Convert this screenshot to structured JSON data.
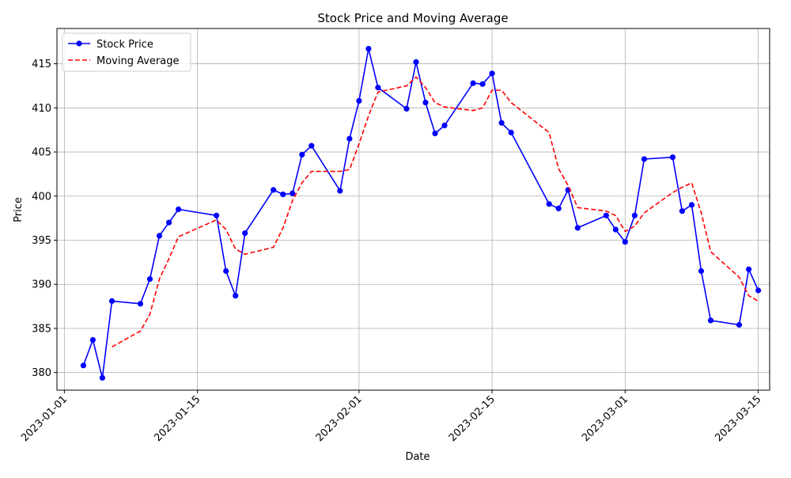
{
  "chart_data": {
    "type": "line",
    "title": "Stock Price and Moving Average",
    "xlabel": "Date",
    "ylabel": "Price",
    "grid": true,
    "legend_position": "top-left",
    "xlim": [
      "2023-01-01",
      "2023-03-15"
    ],
    "ylim": [
      378,
      419
    ],
    "x_ticks": [
      "2023-01-01",
      "2023-01-15",
      "2023-02-01",
      "2023-02-15",
      "2023-03-01",
      "2023-03-15"
    ],
    "y_ticks": [
      380,
      385,
      390,
      395,
      400,
      405,
      410,
      415
    ],
    "x": [
      "2023-01-03",
      "2023-01-04",
      "2023-01-05",
      "2023-01-06",
      "2023-01-09",
      "2023-01-10",
      "2023-01-11",
      "2023-01-12",
      "2023-01-13",
      "2023-01-17",
      "2023-01-18",
      "2023-01-19",
      "2023-01-20",
      "2023-01-23",
      "2023-01-24",
      "2023-01-25",
      "2023-01-26",
      "2023-01-27",
      "2023-01-30",
      "2023-01-31",
      "2023-02-01",
      "2023-02-02",
      "2023-02-03",
      "2023-02-06",
      "2023-02-07",
      "2023-02-08",
      "2023-02-09",
      "2023-02-10",
      "2023-02-13",
      "2023-02-14",
      "2023-02-15",
      "2023-02-16",
      "2023-02-17",
      "2023-02-21",
      "2023-02-22",
      "2023-02-23",
      "2023-02-24",
      "2023-02-27",
      "2023-02-28",
      "2023-03-01",
      "2023-03-02",
      "2023-03-03",
      "2023-03-06",
      "2023-03-07",
      "2023-03-08",
      "2023-03-09",
      "2023-03-10",
      "2023-03-13",
      "2023-03-14",
      "2023-03-15"
    ],
    "series": [
      {
        "name": "Stock Price",
        "color": "#0000ff",
        "style": "solid-with-markers",
        "values": [
          380.8,
          383.7,
          379.4,
          388.1,
          387.8,
          390.6,
          395.5,
          397.0,
          398.5,
          397.8,
          391.5,
          388.7,
          395.8,
          400.7,
          400.2,
          400.3,
          404.7,
          405.7,
          400.6,
          406.5,
          410.8,
          416.7,
          412.3,
          409.9,
          415.2,
          410.6,
          407.1,
          408.0,
          412.8,
          412.7,
          413.9,
          408.3,
          407.2,
          399.1,
          398.6,
          400.7,
          396.4,
          397.8,
          396.2,
          394.8,
          397.8,
          404.2,
          404.4,
          398.3,
          399.0,
          391.5,
          385.9,
          385.4,
          391.7,
          389.3
        ]
      },
      {
        "name": "Moving Average",
        "color": "#ff0000",
        "style": "dashed",
        "values": [
          null,
          null,
          null,
          382.9,
          384.7,
          386.6,
          390.6,
          392.9,
          395.4,
          397.3,
          396.2,
          394.0,
          393.4,
          394.2,
          396.4,
          399.5,
          401.5,
          402.8,
          402.8,
          403.0,
          405.9,
          409.1,
          411.8,
          412.5,
          413.5,
          412.3,
          410.6,
          410.1,
          409.7,
          410.0,
          412.0,
          412.0,
          410.6,
          407.2,
          403.1,
          401.2,
          398.7,
          398.3,
          397.8,
          396.0,
          396.6,
          398.1,
          400.4,
          401.0,
          401.5,
          398.1,
          393.7,
          390.8,
          388.7,
          388.1
        ]
      }
    ]
  }
}
